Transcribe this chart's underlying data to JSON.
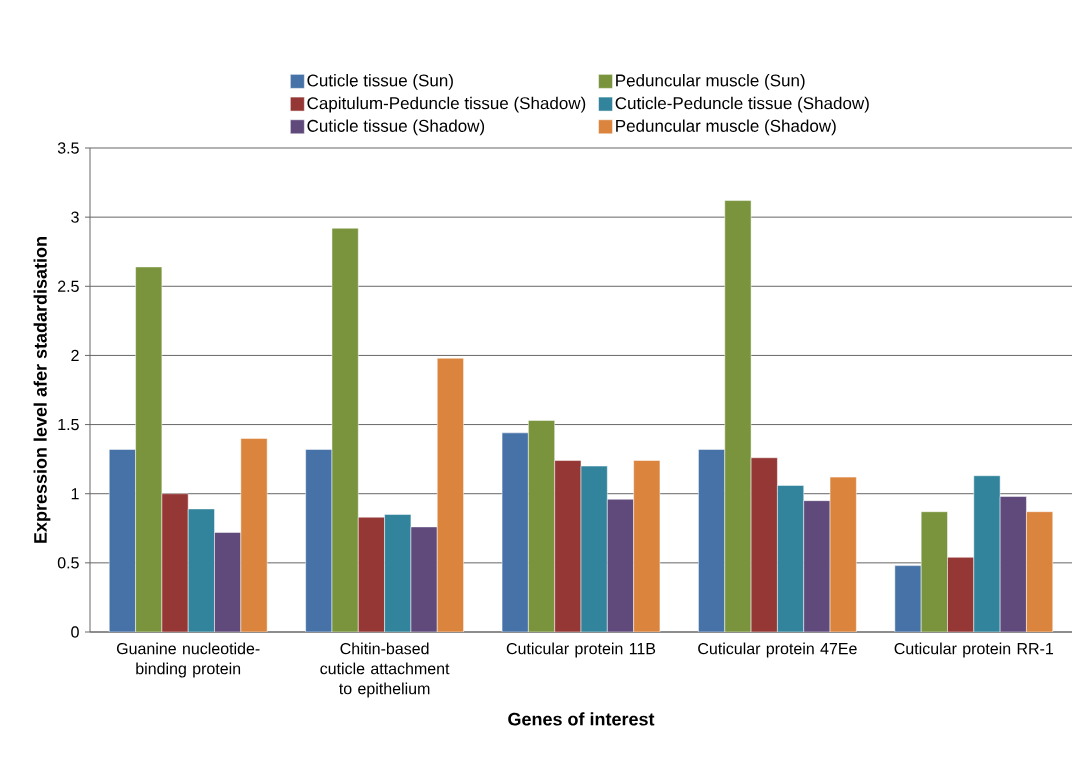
{
  "chart_data": {
    "type": "bar",
    "xlabel": "Genes of interest",
    "ylabel": "Expression level afer stadardisation",
    "categories": [
      "Guanine nucleotide-binding protein",
      "Chitin-based cuticle attachment to epithelium",
      "Cuticular protein 11B",
      "Cuticular protein 47Ee",
      "Cuticular protein RR-1"
    ],
    "series": [
      {
        "name": "Cuticle tissue (Sun)",
        "color": "#4672a8",
        "values": [
          1.32,
          1.32,
          1.44,
          1.32,
          0.48
        ]
      },
      {
        "name": "Peduncular muscle (Sun)",
        "color": "#7a943d",
        "values": [
          2.64,
          2.92,
          1.53,
          3.12,
          0.87
        ]
      },
      {
        "name": "Capitulum-Peduncle tissue  (Shadow)",
        "color": "#953735",
        "values": [
          1.0,
          0.83,
          1.24,
          1.26,
          0.54
        ]
      },
      {
        "name": "Cuticle-Peduncle tissue (Shadow)",
        "color": "#31849b",
        "values": [
          0.89,
          0.85,
          1.2,
          1.06,
          1.13
        ]
      },
      {
        "name": "Cuticle tissue (Shadow)",
        "color": "#604a7b",
        "values": [
          0.72,
          0.76,
          0.96,
          0.95,
          0.98
        ]
      },
      {
        "name": "Peduncular muscle (Shadow)",
        "color": "#db843d",
        "values": [
          1.4,
          1.98,
          1.24,
          1.12,
          0.87
        ]
      }
    ],
    "ylim": [
      0,
      3.5
    ],
    "yticks": [
      0,
      0.5,
      1,
      1.5,
      2,
      2.5,
      3,
      3.5
    ],
    "grid": "y",
    "legend": "top"
  }
}
